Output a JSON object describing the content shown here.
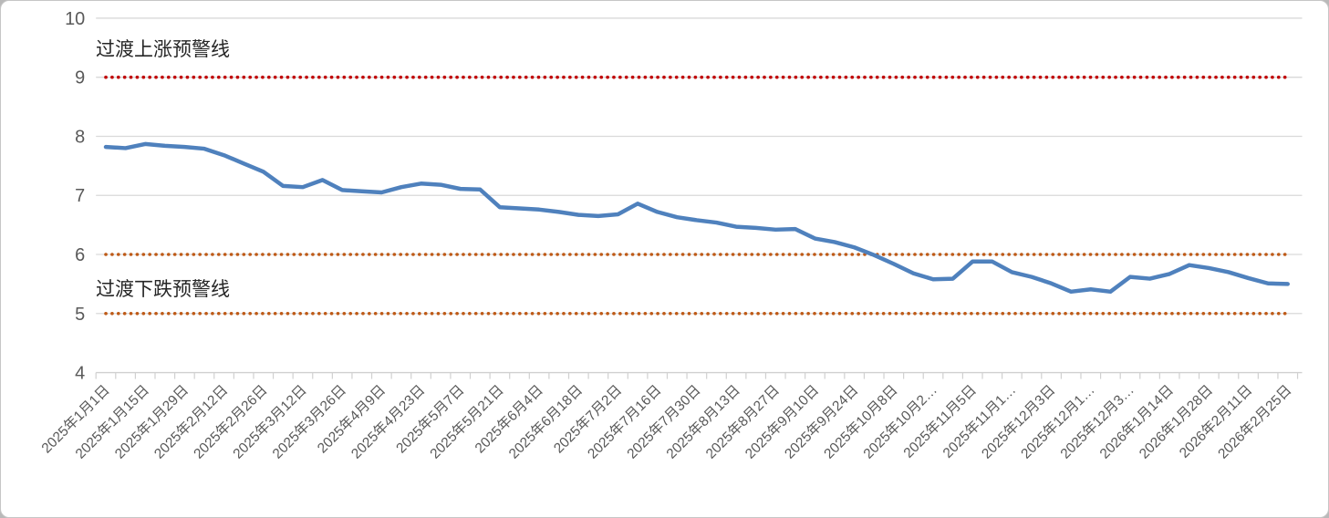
{
  "chart_data": {
    "type": "line",
    "title": "",
    "ylim": [
      4,
      10
    ],
    "yticks": [
      4,
      5,
      6,
      7,
      8,
      9,
      10
    ],
    "grid": "horizontal",
    "legend_position": "none",
    "points_per_tick_label": 2,
    "x_tick_labels": [
      "2025年1月1日",
      "2025年1月15日",
      "2025年1月29日",
      "2025年2月12日",
      "2025年2月26日",
      "2025年3月12日",
      "2025年3月26日",
      "2025年4月9日",
      "2025年4月23日",
      "2025年5月7日",
      "2025年5月21日",
      "2025年6月4日",
      "2025年6月18日",
      "2025年7月2日",
      "2025年7月16日",
      "2025年7月30日",
      "2025年8月13日",
      "2025年8月27日",
      "2025年9月10日",
      "2025年9月24日",
      "2025年10月8日",
      "2025年10月2…",
      "2025年11月5日",
      "2025年11月1…",
      "2025年12月3日",
      "2025年12月1…",
      "2025年12月3…",
      "2026年1月14日",
      "2026年1月28日",
      "2026年2月11日",
      "2026年2月25日"
    ],
    "series": [
      {
        "name": "",
        "color": "#4F81BD",
        "values": [
          7.82,
          7.8,
          7.87,
          7.84,
          7.82,
          7.79,
          7.68,
          7.54,
          7.4,
          7.16,
          7.14,
          7.26,
          7.09,
          7.07,
          7.05,
          7.14,
          7.2,
          7.18,
          7.11,
          7.1,
          6.8,
          6.78,
          6.76,
          6.72,
          6.67,
          6.65,
          6.68,
          6.86,
          6.72,
          6.63,
          6.58,
          6.54,
          6.47,
          6.45,
          6.42,
          6.43,
          6.27,
          6.21,
          6.12,
          5.99,
          5.84,
          5.68,
          5.58,
          5.59,
          5.88,
          5.88,
          5.7,
          5.62,
          5.51,
          5.37,
          5.41,
          5.37,
          5.62,
          5.59,
          5.67,
          5.82,
          5.77,
          5.7,
          5.6,
          5.51,
          5.5
        ]
      }
    ],
    "reference_lines": [
      {
        "label": "过渡上涨预警线",
        "value": 9,
        "color": "#C00000",
        "style": "dotted"
      },
      {
        "label": "",
        "value": 6,
        "color": "#BE5A17",
        "style": "dotted"
      },
      {
        "label": "过渡下跌预警线",
        "value": 5,
        "color": "#BE5A17",
        "style": "dotted"
      }
    ]
  },
  "style_colors": {
    "gridline": "#D9D9D9",
    "axis_line": "#D0D0D0",
    "axis_text": "#595959",
    "annotation_text": "#262626"
  }
}
